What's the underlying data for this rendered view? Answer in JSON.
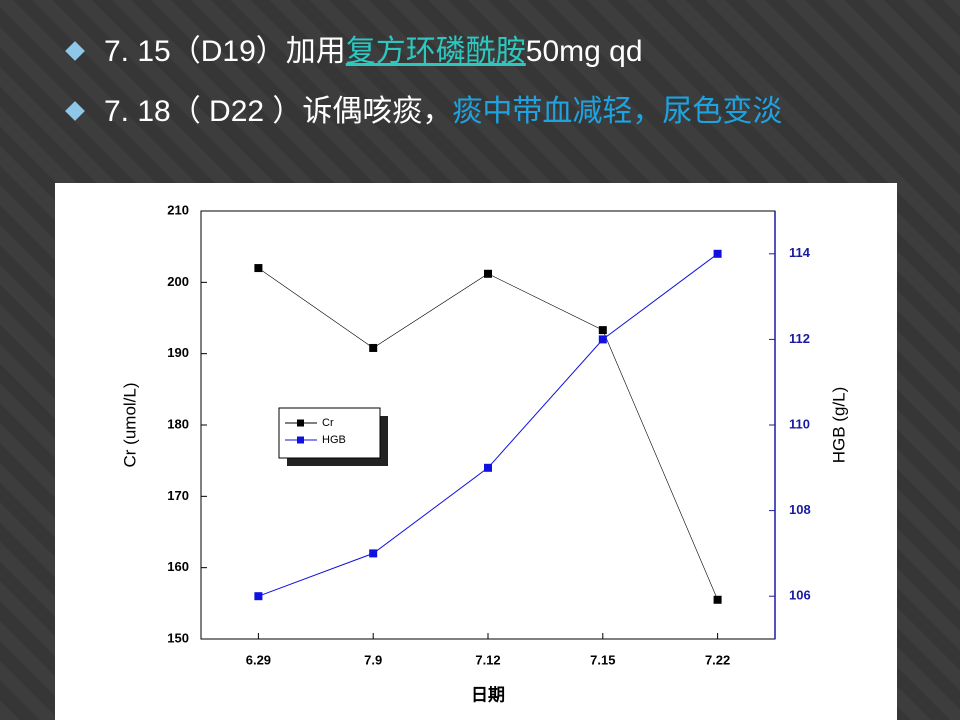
{
  "bullets": [
    {
      "segments": [
        {
          "text": "7. 15（D19）加用"
        },
        {
          "text": "复方环磷酰胺",
          "link": true
        },
        {
          "text": "50mg qd"
        }
      ]
    },
    {
      "segments": [
        {
          "text": "7. 18（ D22 ）诉偶咳痰，"
        },
        {
          "text": "痰中带血减轻，尿色变淡",
          "color": "#1fa3e0"
        }
      ]
    }
  ],
  "chart_data": {
    "type": "line",
    "x_label": "日期",
    "y_label": "Cr (umol/L)",
    "y2_label": "HGB (g/L)",
    "categories": [
      "6.29",
      "7.9",
      "7.12",
      "7.15",
      "7.22"
    ],
    "series": [
      {
        "name": "Cr",
        "color": "#000000",
        "values": [
          202,
          190.8,
          201.2,
          193.3,
          155.5
        ]
      },
      {
        "name": "HGB",
        "color": "#1010e0",
        "axis": "y2",
        "values": [
          106,
          107,
          109,
          112,
          114
        ]
      }
    ],
    "ylim": [
      150,
      210
    ],
    "yticks": [
      150,
      160,
      170,
      180,
      190,
      200,
      210
    ],
    "y2lim": [
      105,
      115
    ],
    "y2ticks": [
      106,
      108,
      110,
      112,
      114
    ],
    "y2_color": "#1a1aa0",
    "legend": "center-left"
  }
}
